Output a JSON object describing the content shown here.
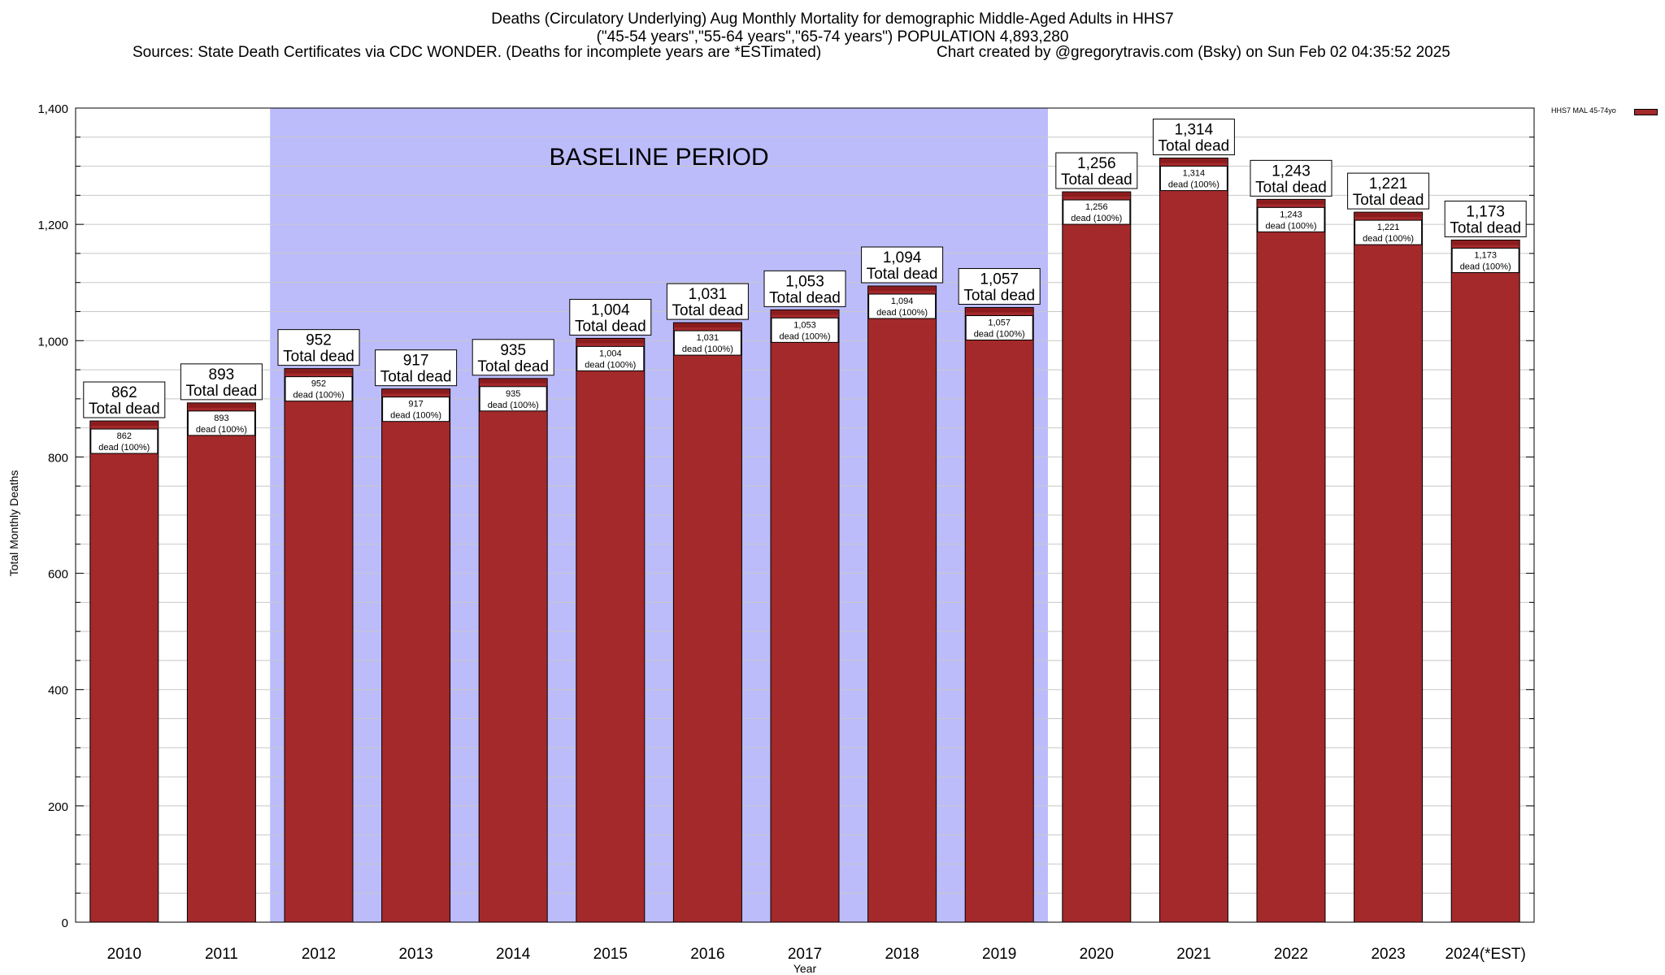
{
  "header": {
    "line1": "Deaths (Circulatory Underlying) Aug Monthly Mortality for demographic Middle-Aged Adults in HHS7",
    "line2": "(\"45-54 years\",\"55-64 years\",\"65-74 years\") POPULATION 4,893,280",
    "line3_left": "Sources: State Death Certificates via CDC WONDER. (Deaths for incomplete years are *ESTimated)",
    "line3_right": "Chart created by @gregorytravis.com (Bsky) on Sun Feb 02 04:35:52 2025"
  },
  "colors": {
    "bar": "#a4292b",
    "bar_top": "#8b1c1e",
    "baseline_shade": "#bcbcfb",
    "grid": "#c8c8c8"
  },
  "chart_data": {
    "type": "bar",
    "xlabel": "Year",
    "ylabel": "Total Monthly Deaths",
    "ylim": [
      0,
      1400
    ],
    "y_ticks": [
      0,
      200,
      400,
      600,
      800,
      1000,
      1200,
      1400
    ],
    "y_tick_labels": [
      "0",
      "200",
      "400",
      "600",
      "800",
      "1,000",
      "1,200",
      "1,400"
    ],
    "grid": true,
    "legend": {
      "placement": "top-right",
      "label": "HHS7 MAL 45-74yo"
    },
    "baseline_period": {
      "label": "BASELINE PERIOD",
      "from": "2012",
      "to": "2019"
    },
    "categories": [
      "2010",
      "2011",
      "2012",
      "2013",
      "2014",
      "2015",
      "2016",
      "2017",
      "2018",
      "2019",
      "2020",
      "2021",
      "2022",
      "2023",
      "2024(*EST)"
    ],
    "series": [
      {
        "name": "HHS7 MAL 45-74yo",
        "values": [
          862,
          893,
          952,
          917,
          935,
          1004,
          1031,
          1053,
          1094,
          1057,
          1256,
          1314,
          1243,
          1221,
          1173
        ]
      }
    ],
    "total_labels": [
      "862",
      "893",
      "952",
      "917",
      "935",
      "1,004",
      "1,031",
      "1,053",
      "1,094",
      "1,057",
      "1,256",
      "1,314",
      "1,243",
      "1,221",
      "1,173"
    ],
    "total_suffix": "Total dead",
    "inner_suffix": "dead (100%)"
  }
}
